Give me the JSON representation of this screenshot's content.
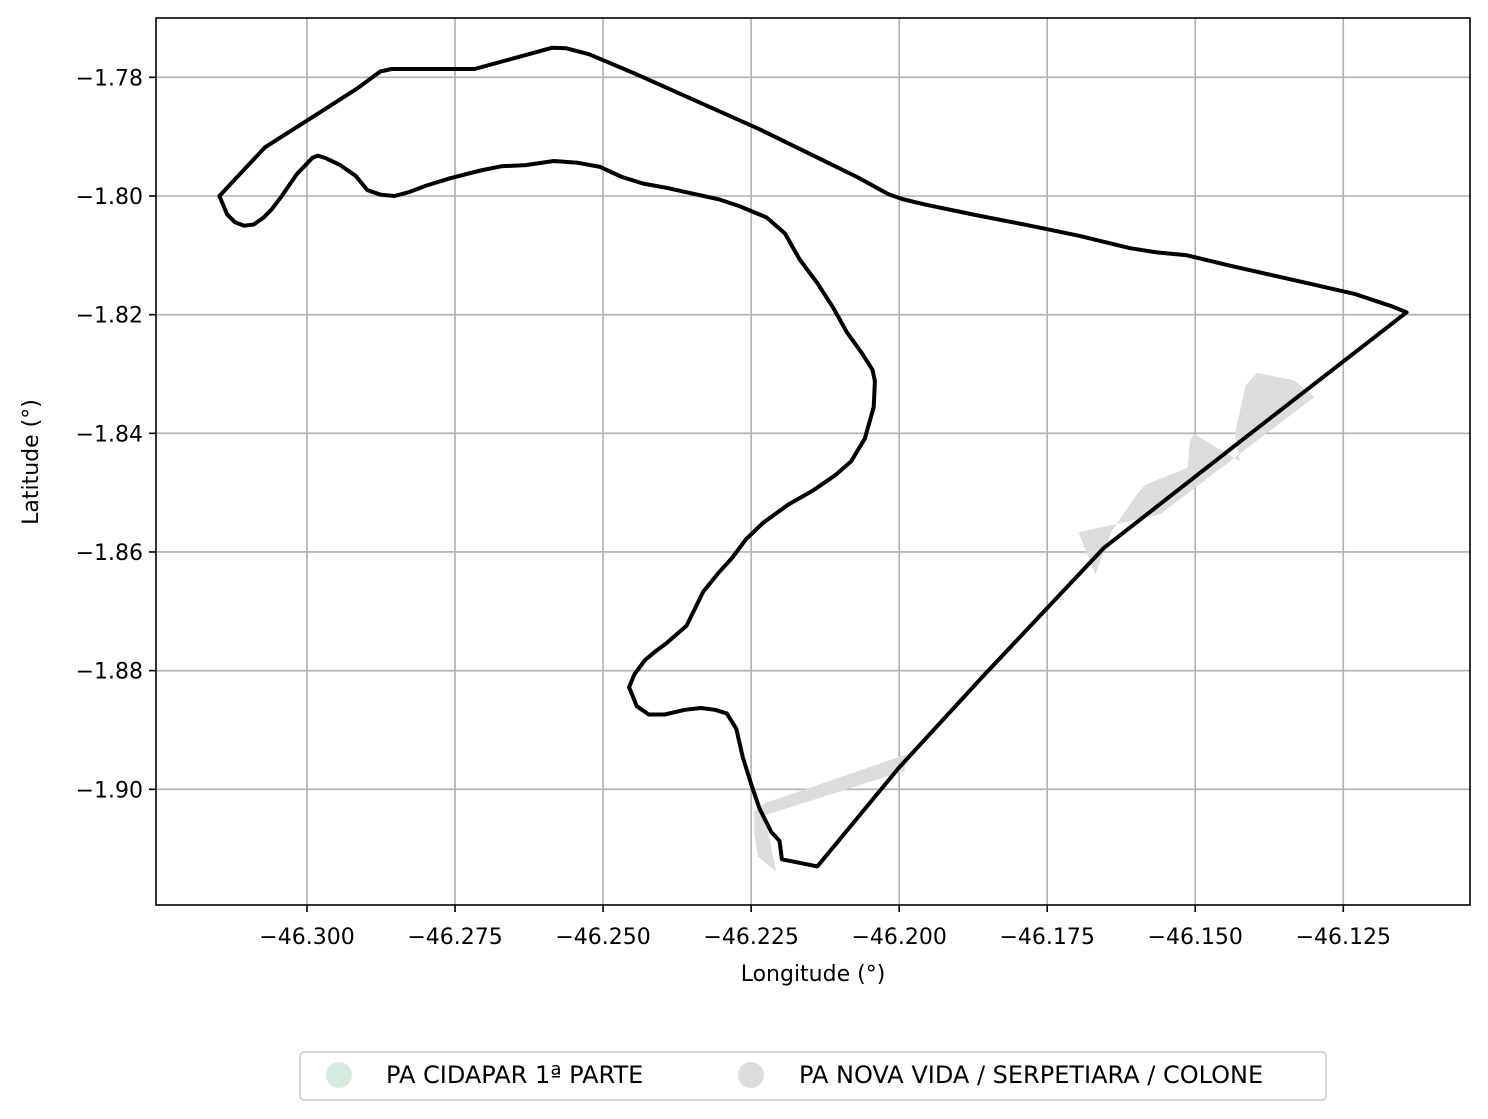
{
  "chart_data": {
    "type": "map",
    "xlabel": "Longitude (°)",
    "ylabel": "Latitude (°)",
    "xlim": [
      -46.3255,
      -46.1036
    ],
    "ylim": [
      -1.9195,
      -1.77
    ],
    "grid": true,
    "x_ticks": [
      {
        "value": -46.3,
        "label": "−46.300"
      },
      {
        "value": -46.275,
        "label": "−46.275"
      },
      {
        "value": -46.25,
        "label": "−46.250"
      },
      {
        "value": -46.225,
        "label": "−46.225"
      },
      {
        "value": -46.2,
        "label": "−46.200"
      },
      {
        "value": -46.175,
        "label": "−46.175"
      },
      {
        "value": -46.15,
        "label": "−46.150"
      },
      {
        "value": -46.125,
        "label": "−46.125"
      }
    ],
    "y_ticks": [
      {
        "value": -1.78,
        "label": "−1.78"
      },
      {
        "value": -1.8,
        "label": "−1.80"
      },
      {
        "value": -1.82,
        "label": "−1.82"
      },
      {
        "value": -1.84,
        "label": "−1.84"
      },
      {
        "value": -1.86,
        "label": "−1.86"
      },
      {
        "value": -1.88,
        "label": "−1.88"
      },
      {
        "value": -1.9,
        "label": "−1.90"
      }
    ],
    "boundary_outline": [
      [
        -46.3148,
        -1.8
      ],
      [
        -46.3135,
        -1.8031
      ],
      [
        -46.3122,
        -1.8044
      ],
      [
        -46.3106,
        -1.805
      ],
      [
        -46.309,
        -1.8048
      ],
      [
        -46.3074,
        -1.8037
      ],
      [
        -46.306,
        -1.8023
      ],
      [
        -46.3044,
        -1.8002
      ],
      [
        -46.3017,
        -1.7963
      ],
      [
        -46.2991,
        -1.7936
      ],
      [
        -46.2982,
        -1.7932
      ],
      [
        -46.2969,
        -1.7936
      ],
      [
        -46.2944,
        -1.7948
      ],
      [
        -46.2918,
        -1.7966
      ],
      [
        -46.2898,
        -1.799
      ],
      [
        -46.2875,
        -1.7998
      ],
      [
        -46.2852,
        -1.8
      ],
      [
        -46.2826,
        -1.7993
      ],
      [
        -46.28,
        -1.7983
      ],
      [
        -46.2758,
        -1.797
      ],
      [
        -46.2707,
        -1.7957
      ],
      [
        -46.2672,
        -1.795
      ],
      [
        -46.2631,
        -1.7948
      ],
      [
        -46.2583,
        -1.7941
      ],
      [
        -46.2543,
        -1.7944
      ],
      [
        -46.2505,
        -1.7951
      ],
      [
        -46.2468,
        -1.7968
      ],
      [
        -46.2433,
        -1.7979
      ],
      [
        -46.2394,
        -1.7986
      ],
      [
        -46.2349,
        -1.7996
      ],
      [
        -46.2303,
        -1.8006
      ],
      [
        -46.227,
        -1.8017
      ],
      [
        -46.2224,
        -1.8036
      ],
      [
        -46.2193,
        -1.8063
      ],
      [
        -46.2168,
        -1.8107
      ],
      [
        -46.2138,
        -1.8147
      ],
      [
        -46.2111,
        -1.8189
      ],
      [
        -46.2088,
        -1.823
      ],
      [
        -46.2063,
        -1.8265
      ],
      [
        -46.2045,
        -1.8293
      ],
      [
        -46.2041,
        -1.8312
      ],
      [
        -46.2043,
        -1.8356
      ],
      [
        -46.2058,
        -1.8409
      ],
      [
        -46.2081,
        -1.8447
      ],
      [
        -46.2107,
        -1.847
      ],
      [
        -46.2145,
        -1.8496
      ],
      [
        -46.2187,
        -1.852
      ],
      [
        -46.223,
        -1.8551
      ],
      [
        -46.2259,
        -1.8579
      ],
      [
        -46.2283,
        -1.8611
      ],
      [
        -46.2305,
        -1.8635
      ],
      [
        -46.2331,
        -1.8667
      ],
      [
        -46.2359,
        -1.8724
      ],
      [
        -46.2392,
        -1.8753
      ],
      [
        -46.2411,
        -1.8767
      ],
      [
        -46.2429,
        -1.8782
      ],
      [
        -46.2447,
        -1.8806
      ],
      [
        -46.2456,
        -1.8828
      ],
      [
        -46.2443,
        -1.886
      ],
      [
        -46.2423,
        -1.8874
      ],
      [
        -46.2396,
        -1.8874
      ],
      [
        -46.2362,
        -1.8866
      ],
      [
        -46.2335,
        -1.8863
      ],
      [
        -46.2311,
        -1.8866
      ],
      [
        -46.2291,
        -1.8872
      ],
      [
        -46.2275,
        -1.8898
      ],
      [
        -46.2264,
        -1.8946
      ],
      [
        -46.2249,
        -1.8994
      ],
      [
        -46.2236,
        -1.9032
      ],
      [
        -46.2216,
        -1.9072
      ],
      [
        -46.2202,
        -1.9087
      ],
      [
        -46.2198,
        -1.9118
      ],
      [
        -46.2138,
        -1.913
      ],
      [
        -46.2,
        -1.8963
      ],
      [
        -46.1857,
        -1.8808
      ],
      [
        -46.1654,
        -1.8593
      ],
      [
        -46.141,
        -1.8403
      ],
      [
        -46.1143,
        -1.8196
      ],
      [
        -46.1168,
        -1.8186
      ],
      [
        -46.1231,
        -1.8165
      ],
      [
        -46.1301,
        -1.8149
      ],
      [
        -46.1372,
        -1.8133
      ],
      [
        -46.1443,
        -1.8117
      ],
      [
        -46.1514,
        -1.81
      ],
      [
        -46.1565,
        -1.8095
      ],
      [
        -46.161,
        -1.8088
      ],
      [
        -46.1697,
        -1.8067
      ],
      [
        -46.1784,
        -1.8049
      ],
      [
        -46.1871,
        -1.8032
      ],
      [
        -46.1958,
        -1.8014
      ],
      [
        -46.1995,
        -1.8005
      ],
      [
        -46.2018,
        -1.7997
      ],
      [
        -46.2071,
        -1.7968
      ],
      [
        -46.2145,
        -1.7932
      ],
      [
        -46.2237,
        -1.7887
      ],
      [
        -46.234,
        -1.7841
      ],
      [
        -46.2443,
        -1.7795
      ],
      [
        -46.2524,
        -1.7761
      ],
      [
        -46.2562,
        -1.7751
      ],
      [
        -46.2586,
        -1.775
      ],
      [
        -46.2607,
        -1.7756
      ],
      [
        -46.2651,
        -1.7768
      ],
      [
        -46.2717,
        -1.7786
      ],
      [
        -46.277,
        -1.7786
      ],
      [
        -46.2823,
        -1.7786
      ],
      [
        -46.2857,
        -1.7786
      ],
      [
        -46.2876,
        -1.779
      ],
      [
        -46.2917,
        -1.782
      ],
      [
        -46.2986,
        -1.7864
      ],
      [
        -46.3071,
        -1.7918
      ],
      [
        -46.3148,
        -1.8
      ]
    ],
    "series": [
      {
        "name": "PA CIDAPAR 1ª PARTE",
        "color": "#d4ece0",
        "polygons": []
      },
      {
        "name": "PA NOVA VIDA / SERPETIARA / COLONE",
        "color": "#dcdcdc",
        "polygons": [
          [
            [
              -46.2245,
              -1.9037
            ],
            [
              -46.2225,
              -1.9022
            ],
            [
              -46.2205,
              -1.9016
            ],
            [
              -46.1987,
              -1.8941
            ],
            [
              -46.1991,
              -1.8969
            ],
            [
              -46.2227,
              -1.9044
            ],
            [
              -46.2208,
              -1.9138
            ],
            [
              -46.2238,
              -1.9114
            ],
            [
              -46.2245,
              -1.9074
            ]
          ],
          [
            [
              -46.1697,
              -1.8567
            ],
            [
              -46.1669,
              -1.8638
            ],
            [
              -46.1641,
              -1.8565
            ],
            [
              -46.1602,
              -1.8508
            ],
            [
              -46.1585,
              -1.8487
            ],
            [
              -46.1513,
              -1.8458
            ],
            [
              -46.1509,
              -1.8413
            ],
            [
              -46.1502,
              -1.8401
            ],
            [
              -46.1425,
              -1.8447
            ],
            [
              -46.1433,
              -1.8401
            ],
            [
              -46.1415,
              -1.832
            ],
            [
              -46.1396,
              -1.8298
            ],
            [
              -46.1333,
              -1.8311
            ],
            [
              -46.1299,
              -1.8339
            ],
            [
              -46.1424,
              -1.8434
            ],
            [
              -46.156,
              -1.8537
            ],
            [
              -46.1611,
              -1.8548
            ]
          ]
        ]
      }
    ],
    "legend_position": "bottom-center"
  }
}
